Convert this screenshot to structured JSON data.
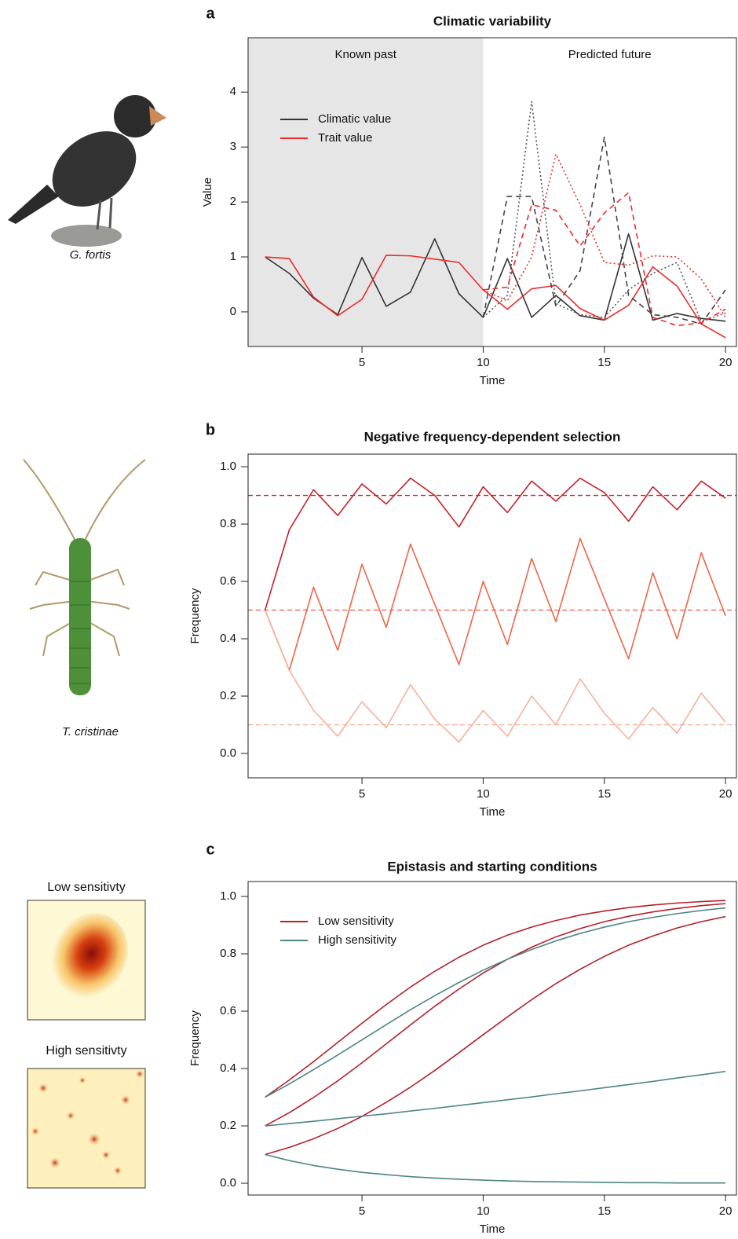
{
  "side_captions": [
    "G. fortis",
    "T. cristinae",
    "Low sensitivty",
    "High sensitivty"
  ],
  "chart_data": [
    {
      "type": "line",
      "panel_label": "a",
      "title": "Climatic variability",
      "x_label": "Time",
      "y_label": "Value",
      "x": [
        1,
        2,
        3,
        4,
        5,
        6,
        7,
        8,
        9,
        10,
        11,
        12,
        13,
        14,
        15,
        16,
        17,
        18,
        19,
        20
      ],
      "xlim": [
        0.3,
        20.45
      ],
      "xticks": [
        5,
        10,
        15,
        20
      ],
      "ylim": [
        -0.63,
        4.99
      ],
      "yticks": [
        0,
        1,
        2,
        3,
        4
      ],
      "shade_until": 10,
      "shade_color": "#e6e6e6",
      "annotations": [
        "Known past",
        "Predicted future"
      ],
      "legend": "top-left",
      "series": [
        {
          "name": "Climatic value",
          "color": "#333333",
          "dash": "solid",
          "values": [
            1,
            0.7,
            0.25,
            -0.05,
            0.99,
            0.1,
            0.36,
            1.33,
            0.33,
            -0.1,
            0.97,
            -0.1,
            0.3,
            -0.07,
            -0.15,
            1.42,
            -0.15,
            -0.03,
            -0.12,
            -0.17
          ]
        },
        {
          "name": "Trait value",
          "color": "#ee2a2a",
          "dash": "solid",
          "values": [
            1,
            0.97,
            0.27,
            -0.07,
            0.23,
            1.03,
            1.02,
            0.96,
            0.9,
            0.4,
            0.05,
            0.42,
            0.48,
            0.06,
            -0.15,
            0.12,
            0.82,
            0.47,
            -0.22,
            -0.47
          ]
        },
        {
          "color": "#444444",
          "dash": "dashed",
          "values": [
            null,
            null,
            null,
            null,
            null,
            null,
            null,
            null,
            null,
            -0.1,
            2.1,
            2.1,
            0.1,
            0.75,
            3.18,
            0.3,
            -0.05,
            -0.1,
            -0.22,
            0.4
          ]
        },
        {
          "color": "#555555",
          "dash": "dotted",
          "values": [
            null,
            null,
            null,
            null,
            null,
            null,
            null,
            null,
            null,
            -0.1,
            0.3,
            3.83,
            0.15,
            -0.05,
            -0.1,
            0.4,
            0.7,
            0.9,
            -0.18,
            -0.02
          ]
        },
        {
          "color": "#ee2a2a",
          "dash": "dashed",
          "values": [
            null,
            null,
            null,
            null,
            null,
            null,
            null,
            null,
            null,
            0.4,
            0.45,
            1.95,
            1.85,
            1.2,
            1.8,
            2.17,
            -0.1,
            -0.25,
            -0.2,
            0.05
          ]
        },
        {
          "color": "#ee2a2a",
          "dash": "dotted",
          "values": [
            null,
            null,
            null,
            null,
            null,
            null,
            null,
            null,
            null,
            0.4,
            0.2,
            1.0,
            2.87,
            1.95,
            0.9,
            0.85,
            1.02,
            1.0,
            0.6,
            -0.1
          ]
        }
      ]
    },
    {
      "type": "line",
      "panel_label": "b",
      "title": "Negative frequency-dependent selection",
      "x_label": "Time",
      "y_label": "Frequency",
      "x": [
        1,
        2,
        3,
        4,
        5,
        6,
        7,
        8,
        9,
        10,
        11,
        12,
        13,
        14,
        15,
        16,
        17,
        18,
        19,
        20
      ],
      "xlim": [
        0.3,
        20.45
      ],
      "xticks": [
        5,
        10,
        15,
        20
      ],
      "ylim": [
        -0.085,
        1.044
      ],
      "yticks": [
        {
          "value": 0,
          "label": "0.0"
        },
        0.2,
        0.4,
        0.6,
        0.8,
        {
          "value": 1,
          "label": "1.0"
        }
      ],
      "hlines": [
        {
          "value": 0.9,
          "color": "#c8202a"
        },
        {
          "value": 0.5,
          "color": "#ef5a42"
        },
        {
          "value": 0.1,
          "color": "#f7a48c"
        }
      ],
      "series": [
        {
          "color": "#c8202a",
          "dash": "solid",
          "values": [
            0.5,
            0.78,
            0.92,
            0.83,
            0.94,
            0.87,
            0.96,
            0.9,
            0.79,
            0.93,
            0.84,
            0.95,
            0.88,
            0.96,
            0.91,
            0.81,
            0.93,
            0.85,
            0.95,
            0.89
          ]
        },
        {
          "color": "#ef6548",
          "dash": "solid",
          "values": [
            0.5,
            0.29,
            0.58,
            0.36,
            0.66,
            0.44,
            0.73,
            0.52,
            0.31,
            0.6,
            0.38,
            0.68,
            0.46,
            0.75,
            0.54,
            0.33,
            0.63,
            0.4,
            0.7,
            0.48
          ]
        },
        {
          "color": "#f9b09a",
          "dash": "solid",
          "values": [
            0.5,
            0.29,
            0.15,
            0.06,
            0.18,
            0.09,
            0.24,
            0.12,
            0.04,
            0.15,
            0.06,
            0.2,
            0.1,
            0.26,
            0.14,
            0.05,
            0.16,
            0.07,
            0.21,
            0.11
          ]
        }
      ]
    },
    {
      "type": "line",
      "panel_label": "c",
      "title": "Epistasis and starting conditions",
      "x_label": "Time",
      "y_label": "Frequency",
      "x": [
        1,
        2,
        3,
        4,
        5,
        6,
        7,
        8,
        9,
        10,
        11,
        12,
        13,
        14,
        15,
        16,
        17,
        18,
        19,
        20
      ],
      "xlim": [
        0.3,
        20.45
      ],
      "xticks": [
        5,
        10,
        15,
        20
      ],
      "ylim": [
        -0.041,
        1.052
      ],
      "yticks": [
        {
          "value": 0,
          "label": "0.0"
        },
        0.2,
        0.4,
        0.6,
        0.8,
        {
          "value": 1,
          "label": "1.0"
        }
      ],
      "legend": "top-left",
      "series": [
        {
          "name": "Low sensitivity",
          "color": "#b5202a",
          "dash": "solid",
          "values": [
            0.3,
            0.36,
            0.424,
            0.491,
            0.558,
            0.623,
            0.684,
            0.739,
            0.788,
            0.83,
            0.865,
            0.893,
            0.916,
            0.935,
            0.949,
            0.961,
            0.97,
            0.977,
            0.982,
            0.986
          ]
        },
        {
          "color": "#b5202a",
          "dash": "solid",
          "values": [
            0.2,
            0.246,
            0.299,
            0.357,
            0.42,
            0.486,
            0.552,
            0.617,
            0.677,
            0.733,
            0.781,
            0.823,
            0.859,
            0.888,
            0.912,
            0.931,
            0.946,
            0.958,
            0.968,
            0.975
          ]
        },
        {
          "color": "#b5202a",
          "dash": "solid",
          "values": [
            0.1,
            0.125,
            0.155,
            0.191,
            0.233,
            0.282,
            0.335,
            0.393,
            0.455,
            0.518,
            0.58,
            0.64,
            0.696,
            0.746,
            0.791,
            0.83,
            0.862,
            0.89,
            0.912,
            0.93
          ]
        },
        {
          "name": "High sensitivity",
          "color": "#4d8587",
          "dash": "solid",
          "values": [
            0.3,
            0.346,
            0.396,
            0.447,
            0.5,
            0.553,
            0.605,
            0.654,
            0.7,
            0.743,
            0.781,
            0.815,
            0.845,
            0.871,
            0.893,
            0.912,
            0.927,
            0.94,
            0.951,
            0.96
          ]
        },
        {
          "color": "#4d8587",
          "dash": "solid",
          "values": [
            0.2,
            0.208,
            0.216,
            0.225,
            0.234,
            0.242,
            0.252,
            0.261,
            0.271,
            0.281,
            0.291,
            0.301,
            0.312,
            0.322,
            0.333,
            0.344,
            0.355,
            0.367,
            0.378,
            0.39
          ]
        },
        {
          "color": "#4d8587",
          "dash": "solid",
          "values": [
            0.1,
            0.079,
            0.062,
            0.049,
            0.038,
            0.03,
            0.023,
            0.018,
            0.014,
            0.011,
            0.008,
            0.006,
            0.005,
            0.004,
            0.003,
            0.002,
            0.002,
            0.001,
            0.001,
            0.001
          ]
        }
      ]
    }
  ]
}
